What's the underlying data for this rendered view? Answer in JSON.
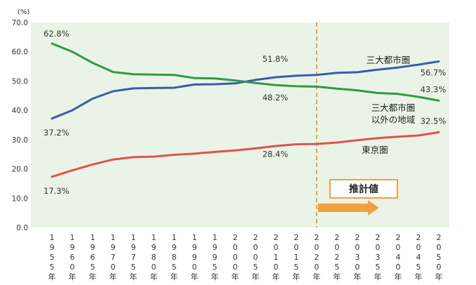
{
  "chart_data": {
    "type": "line",
    "yunit": "(%)",
    "ylim": [
      0,
      70
    ],
    "yticks": [
      "0.0",
      "10.0",
      "20.0",
      "30.0",
      "40.0",
      "50.0",
      "60.0",
      "70.0"
    ],
    "x": [
      "1955年",
      "1960年",
      "1965年",
      "1970年",
      "1975年",
      "1980年",
      "1985年",
      "1990年",
      "1995年",
      "2000年",
      "2005年",
      "2010年",
      "2015年",
      "2020年",
      "2025年",
      "2030年",
      "2035年",
      "2040年",
      "2045年",
      "2050年"
    ],
    "grid": false,
    "series": [
      {
        "name": "三大都市圏",
        "color": "#3f5aa6",
        "values": [
          37.2,
          40.0,
          44.0,
          46.5,
          47.5,
          47.6,
          47.7,
          48.8,
          48.9,
          49.2,
          50.4,
          51.3,
          51.8,
          52.1,
          52.8,
          53.0,
          53.9,
          54.6,
          55.6,
          56.7
        ]
      },
      {
        "name": "三大都市圏以外の地域",
        "label_lines": [
          "三大都市圏",
          "以外の地域"
        ],
        "color": "#2f9a46",
        "values": [
          62.8,
          60.0,
          56.2,
          53.1,
          52.3,
          52.2,
          52.1,
          51.0,
          50.9,
          50.2,
          49.3,
          48.6,
          48.2,
          48.1,
          47.4,
          46.8,
          45.9,
          45.6,
          44.6,
          43.3
        ]
      },
      {
        "name": "東京圏",
        "color": "#e2514c",
        "values": [
          17.3,
          19.5,
          21.5,
          23.2,
          24.0,
          24.2,
          24.8,
          25.2,
          25.8,
          26.3,
          27.0,
          27.8,
          28.4,
          28.5,
          29.0,
          29.8,
          30.5,
          31.0,
          31.4,
          32.5
        ]
      }
    ],
    "data_labels": [
      {
        "text": "62.8%",
        "series": 1,
        "index": 0
      },
      {
        "text": "37.2%",
        "series": 0,
        "index": 0
      },
      {
        "text": "17.3%",
        "series": 2,
        "index": 0
      },
      {
        "text": "51.8%",
        "series": 0,
        "index": 12
      },
      {
        "text": "48.2%",
        "series": 1,
        "index": 12
      },
      {
        "text": "28.4%",
        "series": 2,
        "index": 12
      },
      {
        "text": "56.7%",
        "series": 0,
        "index": 19
      },
      {
        "text": "43.3%",
        "series": 1,
        "index": 19
      },
      {
        "text": "32.5%",
        "series": 2,
        "index": 19
      }
    ],
    "projection_start": "2020年",
    "projection_label": "推計値",
    "colors": {
      "background": "#eaf4e6",
      "projection_line": "#f0a040",
      "arrow": "#f0a040",
      "box_border": "#f0a040"
    }
  }
}
